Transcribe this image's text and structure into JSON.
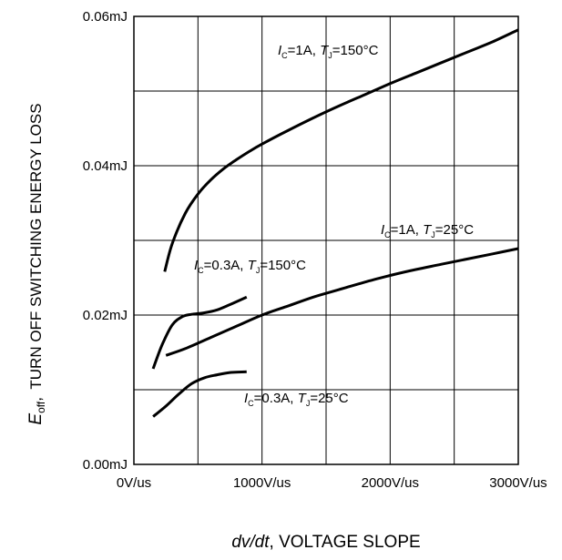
{
  "chart_data": {
    "type": "line",
    "xlabel": "VOLTAGE SLOPE",
    "xlabel_symbol": "dv/dt",
    "ylabel": "TURN OFF SWITCHING ENERGY LOSS",
    "ylabel_symbol_main": "E",
    "ylabel_symbol_sub": "off",
    "xlim": [
      0,
      3000
    ],
    "ylim": [
      0,
      0.06
    ],
    "grid": true,
    "x_tick_labels": [
      "0V/us",
      "1000V/us",
      "2000V/us",
      "3000V/us"
    ],
    "x_ticks": [
      0,
      1000,
      2000,
      3000
    ],
    "y_tick_labels": [
      "0.00mJ",
      "0.02mJ",
      "0.04mJ",
      "0.06mJ"
    ],
    "y_ticks": [
      0,
      0.02,
      0.04,
      0.06
    ],
    "series": [
      {
        "ic_value": "=1A",
        "tj_value": "=150°C",
        "x": [
          240,
          300,
          400,
          500,
          600,
          700,
          800,
          900,
          1000,
          1200,
          1400,
          1600,
          1800,
          2000,
          2200,
          2400,
          2600,
          2800,
          3000
        ],
        "y": [
          0.0258,
          0.0296,
          0.0336,
          0.0362,
          0.0381,
          0.0396,
          0.0408,
          0.0419,
          0.0429,
          0.0447,
          0.0464,
          0.048,
          0.0495,
          0.051,
          0.0524,
          0.0538,
          0.0552,
          0.0566,
          0.0582
        ]
      },
      {
        "ic_value": "=1A",
        "tj_value": "=25°C",
        "x": [
          250,
          400,
          600,
          800,
          1000,
          1200,
          1400,
          1600,
          1800,
          2000,
          2200,
          2400,
          2600,
          2800,
          3000
        ],
        "y": [
          0.0146,
          0.0155,
          0.017,
          0.0185,
          0.02,
          0.0212,
          0.0224,
          0.0234,
          0.0244,
          0.0253,
          0.0261,
          0.0268,
          0.0275,
          0.0282,
          0.0289
        ]
      },
      {
        "ic_value": "=0.3A",
        "tj_value": "=150°C",
        "x": [
          150,
          220,
          300,
          380,
          450,
          550,
          650,
          750,
          880
        ],
        "y": [
          0.0128,
          0.016,
          0.0187,
          0.0198,
          0.0201,
          0.0203,
          0.0207,
          0.0214,
          0.0224
        ]
      },
      {
        "ic_value": "=0.3A",
        "tj_value": "=25°C",
        "x": [
          150,
          250,
          350,
          450,
          550,
          650,
          750,
          880
        ],
        "y": [
          0.0064,
          0.0078,
          0.0094,
          0.0108,
          0.0116,
          0.012,
          0.0123,
          0.0124
        ]
      }
    ],
    "annotation_text": {
      "ic_symbol": "I",
      "ic_sub": "C",
      "separator": ", ",
      "tj_symbol": "T",
      "tj_sub": "J"
    }
  }
}
